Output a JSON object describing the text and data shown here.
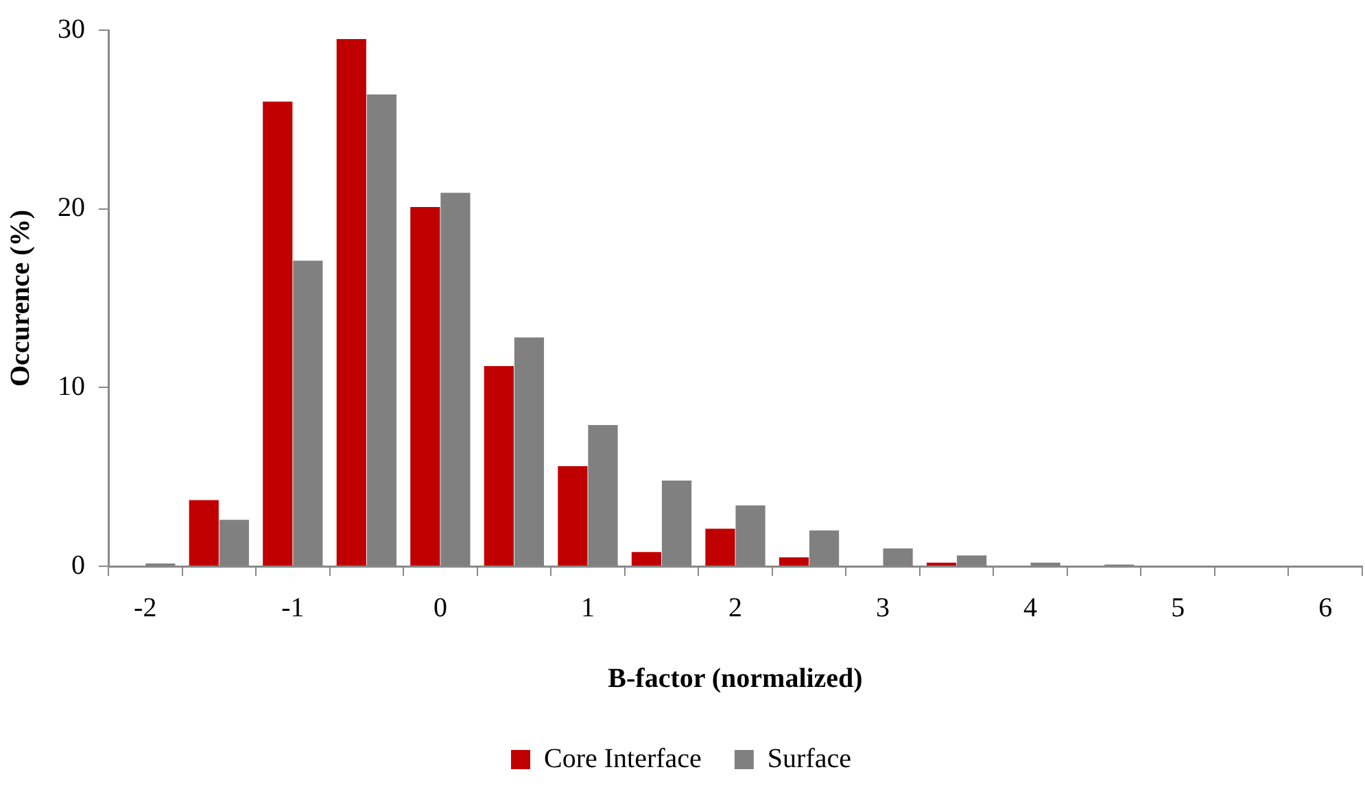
{
  "chart_data": {
    "type": "bar",
    "xlabel": "B-factor (normalized)",
    "ylabel": "Occurence (%)",
    "categories": [
      "-2",
      null,
      "-1",
      null,
      "0",
      null,
      "1",
      null,
      "2",
      null,
      "3",
      null,
      "4",
      null,
      "5",
      null,
      "6"
    ],
    "series": [
      {
        "name": "Core Interface",
        "color": "#c00000",
        "values": [
          0,
          3.7,
          26.0,
          29.5,
          20.1,
          11.2,
          5.6,
          0.8,
          2.1,
          0.5,
          0,
          0.2,
          0,
          0,
          0,
          0,
          0
        ]
      },
      {
        "name": "Surface",
        "color": "#808080",
        "values": [
          0.15,
          2.6,
          17.1,
          26.4,
          20.9,
          12.8,
          7.9,
          4.8,
          3.4,
          2.0,
          1.0,
          0.6,
          0.2,
          0.1,
          null,
          0,
          0
        ]
      }
    ],
    "ylim": [
      0,
      30
    ],
    "yticks": [
      0,
      10,
      20,
      30
    ],
    "grid": false,
    "legend": "bottom"
  }
}
